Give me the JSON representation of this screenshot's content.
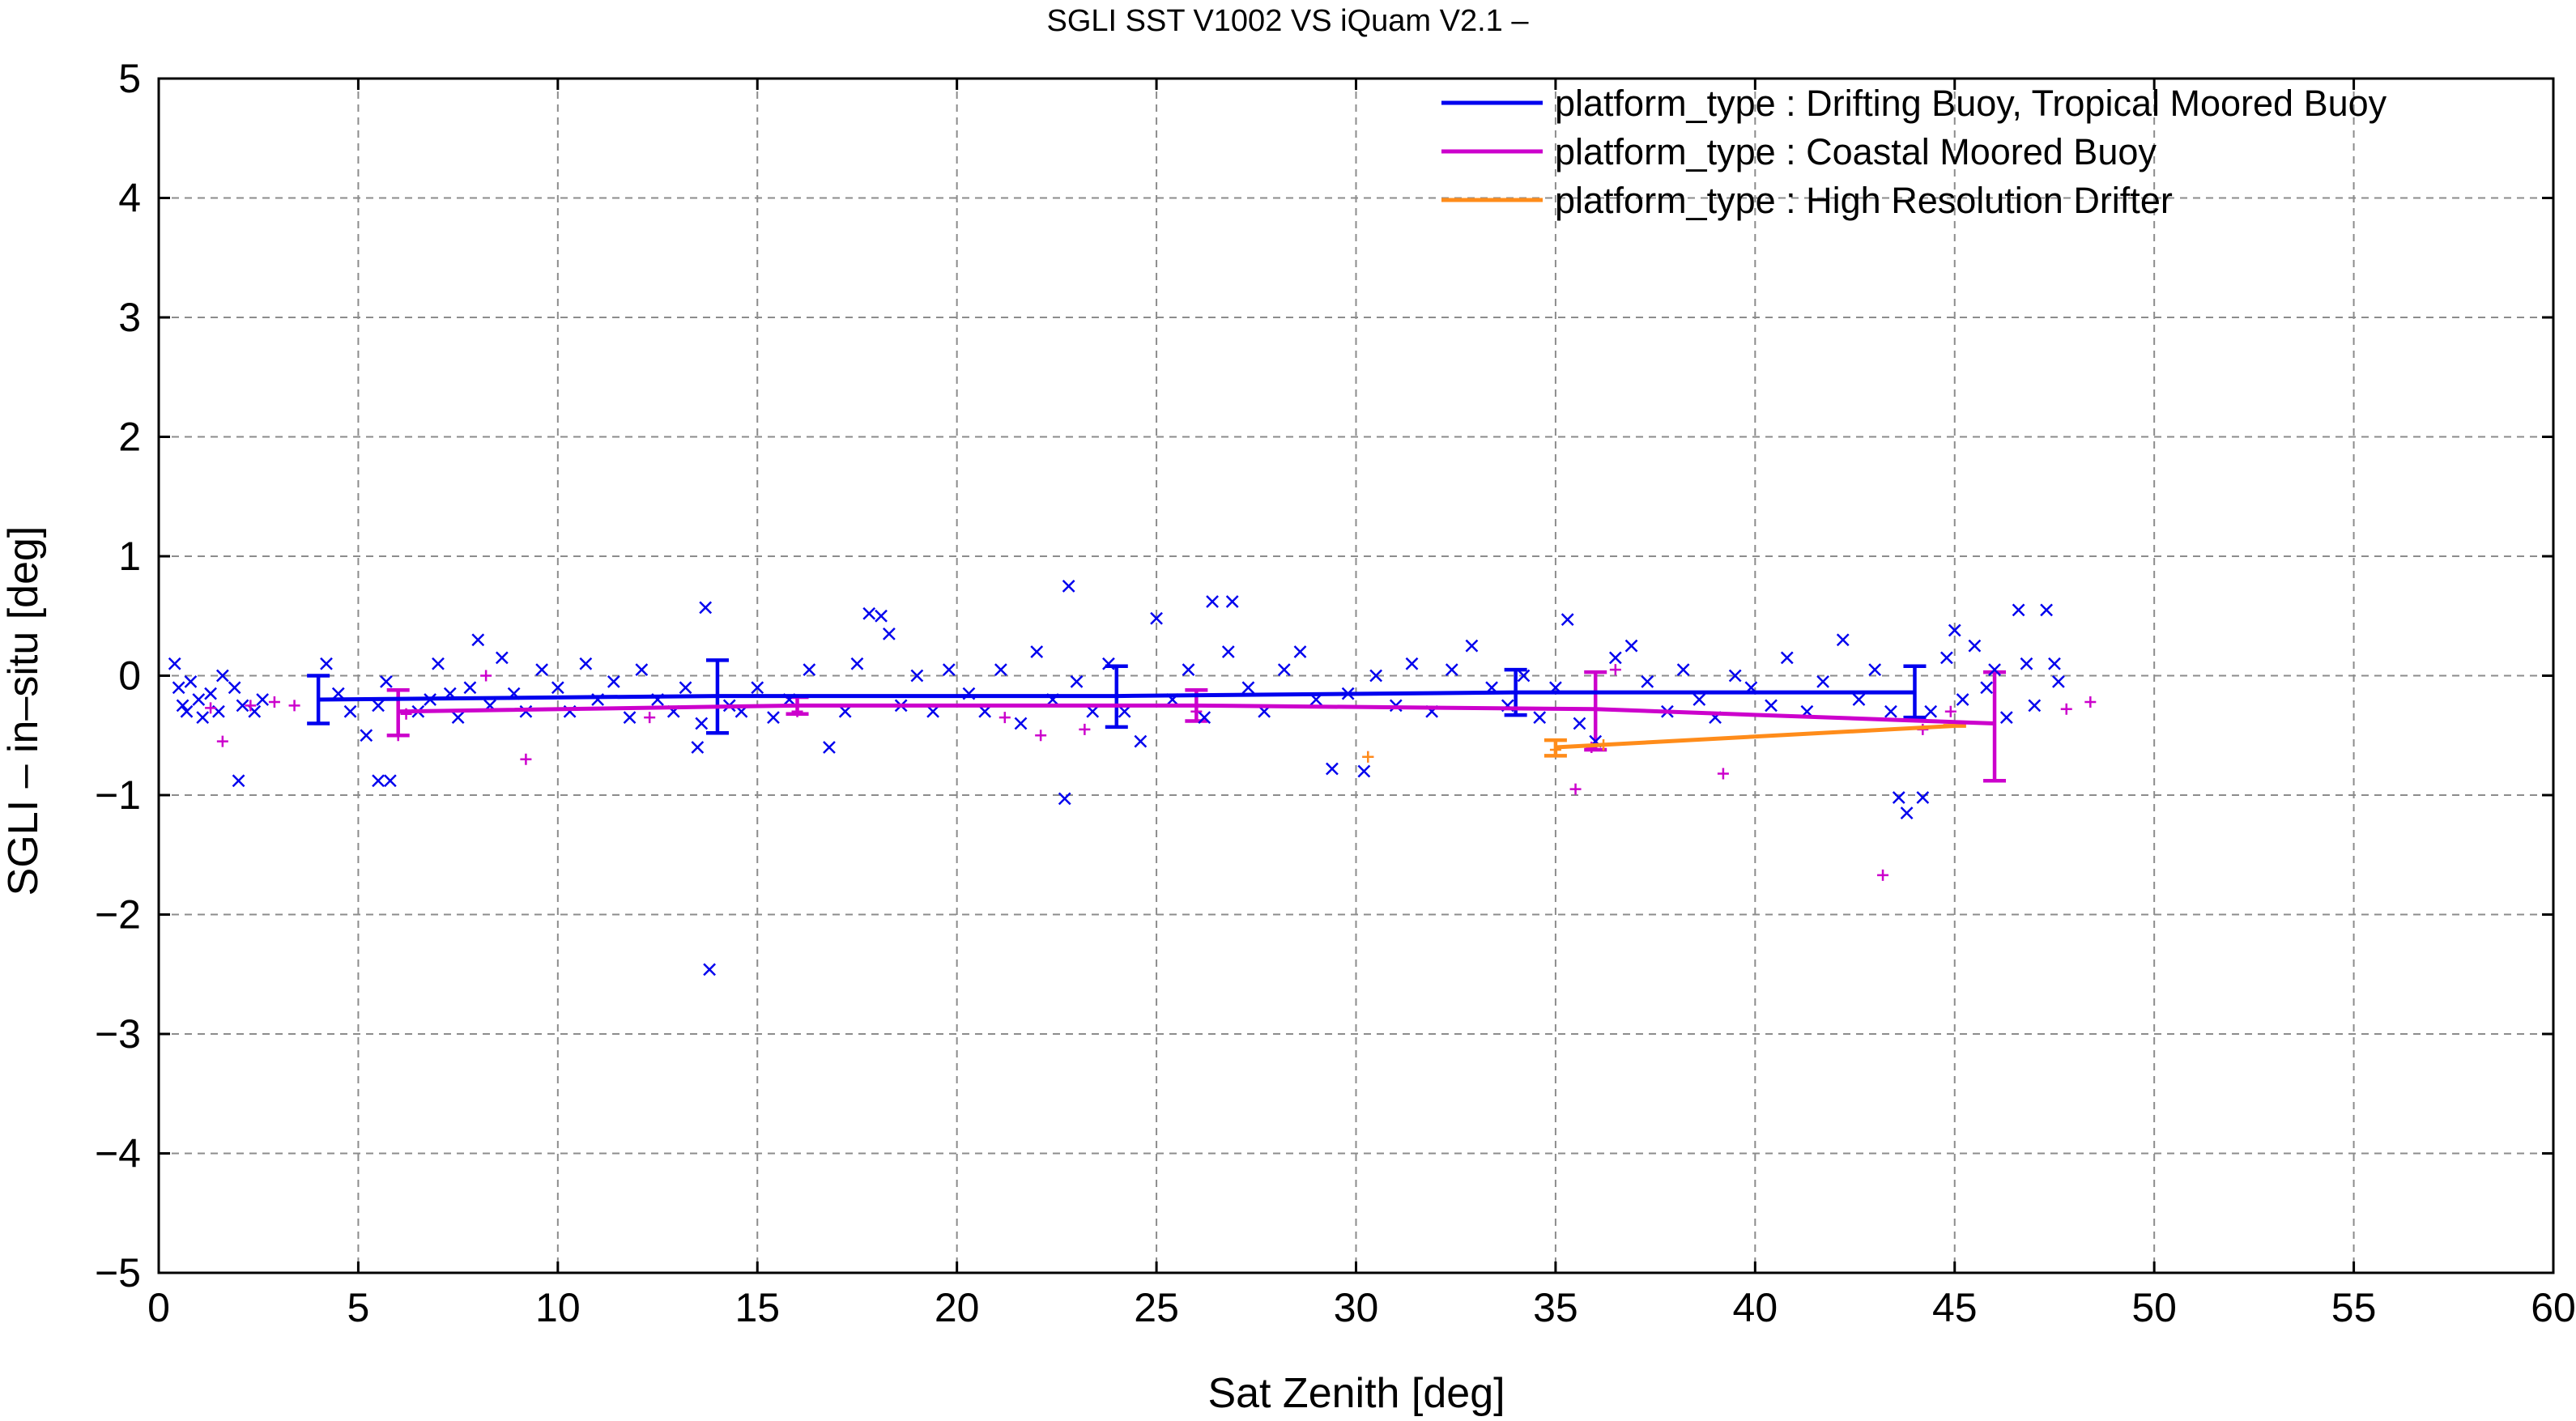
{
  "chart_data": {
    "type": "scatter",
    "title": "SGLI SST V1002 VS iQuam V2.1  –",
    "xlabel": "Sat Zenith [deg]",
    "ylabel": "SGLI – in–situ [deg]",
    "xlim": [
      0,
      60
    ],
    "ylim": [
      -5,
      5
    ],
    "xticks": [
      "0",
      "5",
      "10",
      "15",
      "20",
      "25",
      "30",
      "35",
      "40",
      "45",
      "50",
      "55",
      "60"
    ],
    "yticks": [
      "−5",
      "−4",
      "−3",
      "−2",
      "−1",
      "0",
      "1",
      "2",
      "3",
      "4",
      "5"
    ],
    "grid": true,
    "legend_position": "top-right",
    "series": [
      {
        "name": "platform_type : Drifting Buoy, Tropical Moored Buoy",
        "color": "#0000ee",
        "marker": "x",
        "mean_line": {
          "x": [
            4,
            14,
            24,
            34,
            44
          ],
          "y": [
            -0.2,
            -0.17,
            -0.17,
            -0.14,
            -0.14
          ],
          "err_low": [
            -0.4,
            -0.48,
            -0.43,
            -0.33,
            -0.35
          ],
          "err_high": [
            0.0,
            0.13,
            0.08,
            0.05,
            0.08
          ]
        },
        "points": [
          [
            0.4,
            0.1
          ],
          [
            0.5,
            -0.1
          ],
          [
            0.6,
            -0.25
          ],
          [
            0.7,
            -0.3
          ],
          [
            0.8,
            -0.05
          ],
          [
            1.0,
            -0.2
          ],
          [
            1.1,
            -0.35
          ],
          [
            1.3,
            -0.15
          ],
          [
            1.5,
            -0.3
          ],
          [
            1.6,
            0.0
          ],
          [
            1.9,
            -0.1
          ],
          [
            2.1,
            -0.25
          ],
          [
            2.4,
            -0.3
          ],
          [
            2.6,
            -0.2
          ],
          [
            2.0,
            -0.88
          ],
          [
            4.2,
            0.1
          ],
          [
            4.5,
            -0.15
          ],
          [
            4.8,
            -0.3
          ],
          [
            5.2,
            -0.5
          ],
          [
            5.5,
            -0.25
          ],
          [
            5.7,
            -0.05
          ],
          [
            5.5,
            -0.88
          ],
          [
            5.8,
            -0.88
          ],
          [
            6.5,
            -0.3
          ],
          [
            6.8,
            -0.2
          ],
          [
            7.0,
            0.1
          ],
          [
            7.3,
            -0.15
          ],
          [
            7.5,
            -0.35
          ],
          [
            7.8,
            -0.1
          ],
          [
            8.0,
            0.3
          ],
          [
            8.3,
            -0.25
          ],
          [
            8.6,
            0.15
          ],
          [
            8.9,
            -0.15
          ],
          [
            9.2,
            -0.3
          ],
          [
            9.6,
            0.05
          ],
          [
            10.0,
            -0.1
          ],
          [
            10.3,
            -0.3
          ],
          [
            10.7,
            0.1
          ],
          [
            11.0,
            -0.2
          ],
          [
            11.4,
            -0.05
          ],
          [
            11.8,
            -0.35
          ],
          [
            12.1,
            0.05
          ],
          [
            12.5,
            -0.2
          ],
          [
            12.9,
            -0.3
          ],
          [
            13.2,
            -0.1
          ],
          [
            13.5,
            -0.6
          ],
          [
            13.6,
            -0.4
          ],
          [
            13.7,
            0.57
          ],
          [
            13.8,
            -2.46
          ],
          [
            14.3,
            -0.25
          ],
          [
            14.6,
            -0.3
          ],
          [
            15.0,
            -0.1
          ],
          [
            15.4,
            -0.35
          ],
          [
            15.8,
            -0.2
          ],
          [
            16.3,
            0.05
          ],
          [
            16.8,
            -0.6
          ],
          [
            17.2,
            -0.3
          ],
          [
            17.5,
            0.1
          ],
          [
            17.8,
            0.52
          ],
          [
            18.1,
            0.5
          ],
          [
            18.3,
            0.35
          ],
          [
            18.6,
            -0.25
          ],
          [
            19.0,
            0.0
          ],
          [
            19.4,
            -0.3
          ],
          [
            19.8,
            0.05
          ],
          [
            20.3,
            -0.15
          ],
          [
            20.7,
            -0.3
          ],
          [
            21.1,
            0.05
          ],
          [
            21.6,
            -0.4
          ],
          [
            22.0,
            0.2
          ],
          [
            22.4,
            -0.2
          ],
          [
            22.7,
            -1.03
          ],
          [
            22.8,
            0.75
          ],
          [
            23.0,
            -0.05
          ],
          [
            23.4,
            -0.3
          ],
          [
            23.8,
            0.1
          ],
          [
            24.2,
            -0.3
          ],
          [
            24.6,
            -0.55
          ],
          [
            25.0,
            0.48
          ],
          [
            25.4,
            -0.2
          ],
          [
            25.8,
            0.05
          ],
          [
            26.2,
            -0.35
          ],
          [
            26.4,
            0.62
          ],
          [
            26.8,
            0.2
          ],
          [
            26.9,
            0.62
          ],
          [
            27.3,
            -0.1
          ],
          [
            27.7,
            -0.3
          ],
          [
            28.2,
            0.05
          ],
          [
            28.6,
            0.2
          ],
          [
            29.0,
            -0.2
          ],
          [
            29.4,
            -0.78
          ],
          [
            29.8,
            -0.15
          ],
          [
            30.2,
            -0.8
          ],
          [
            30.5,
            0.0
          ],
          [
            31.0,
            -0.25
          ],
          [
            31.4,
            0.1
          ],
          [
            31.9,
            -0.3
          ],
          [
            32.4,
            0.05
          ],
          [
            32.9,
            0.25
          ],
          [
            33.4,
            -0.1
          ],
          [
            33.8,
            -0.25
          ],
          [
            34.2,
            0.0
          ],
          [
            34.6,
            -0.35
          ],
          [
            35.0,
            -0.1
          ],
          [
            35.3,
            0.47
          ],
          [
            35.6,
            -0.4
          ],
          [
            36.0,
            -0.55
          ],
          [
            36.5,
            0.15
          ],
          [
            36.9,
            0.25
          ],
          [
            37.3,
            -0.05
          ],
          [
            37.8,
            -0.3
          ],
          [
            38.2,
            0.05
          ],
          [
            38.6,
            -0.2
          ],
          [
            39.0,
            -0.35
          ],
          [
            39.5,
            0.0
          ],
          [
            39.9,
            -0.1
          ],
          [
            40.4,
            -0.25
          ],
          [
            40.8,
            0.15
          ],
          [
            41.3,
            -0.3
          ],
          [
            41.7,
            -0.05
          ],
          [
            42.2,
            0.3
          ],
          [
            42.6,
            -0.2
          ],
          [
            43.0,
            0.05
          ],
          [
            43.4,
            -0.3
          ],
          [
            43.6,
            -1.02
          ],
          [
            43.8,
            -1.15
          ],
          [
            44.2,
            -1.02
          ],
          [
            44.4,
            -0.3
          ],
          [
            44.8,
            0.15
          ],
          [
            45.0,
            0.38
          ],
          [
            45.2,
            -0.2
          ],
          [
            45.5,
            0.25
          ],
          [
            45.8,
            -0.1
          ],
          [
            46.0,
            0.05
          ],
          [
            46.3,
            -0.35
          ],
          [
            46.6,
            0.55
          ],
          [
            46.8,
            0.1
          ],
          [
            47.0,
            -0.25
          ],
          [
            47.3,
            0.55
          ],
          [
            47.5,
            0.1
          ],
          [
            47.6,
            -0.05
          ]
        ]
      },
      {
        "name": "platform_type : Coastal Moored Buoy",
        "color": "#cc00cc",
        "marker": "+",
        "mean_line": {
          "x": [
            6,
            16,
            26,
            36,
            46
          ],
          "y": [
            -0.3,
            -0.25,
            -0.25,
            -0.28,
            -0.4
          ],
          "err_low": [
            -0.5,
            -0.32,
            -0.38,
            -0.62,
            -0.88
          ],
          "err_high": [
            -0.12,
            -0.18,
            -0.12,
            0.03,
            0.03
          ]
        },
        "points": [
          [
            1.3,
            -0.27
          ],
          [
            1.6,
            -0.55
          ],
          [
            2.3,
            -0.25
          ],
          [
            2.9,
            -0.22
          ],
          [
            3.4,
            -0.25
          ],
          [
            6.0,
            -0.5
          ],
          [
            6.2,
            -0.32
          ],
          [
            8.2,
            0.0
          ],
          [
            9.2,
            -0.7
          ],
          [
            12.3,
            -0.35
          ],
          [
            16.0,
            -0.3
          ],
          [
            21.2,
            -0.35
          ],
          [
            22.1,
            -0.5
          ],
          [
            23.2,
            -0.45
          ],
          [
            26.0,
            -0.3
          ],
          [
            30.3,
            -0.68
          ],
          [
            35.5,
            -0.95
          ],
          [
            35.9,
            -0.6
          ],
          [
            36.5,
            0.05
          ],
          [
            39.2,
            -0.82
          ],
          [
            43.2,
            -1.67
          ],
          [
            44.2,
            -0.45
          ],
          [
            44.9,
            -0.3
          ],
          [
            48.4,
            -0.22
          ],
          [
            47.8,
            -0.28
          ]
        ]
      },
      {
        "name": "platform_type : High Resolution Drifter",
        "color": "#ff8c1a",
        "marker": "+",
        "mean_line": {
          "x": [
            35,
            45
          ],
          "y": [
            -0.6,
            -0.42
          ],
          "err_low": [
            -0.67,
            -0.42
          ],
          "err_high": [
            -0.54,
            -0.42
          ]
        },
        "points": [
          [
            30.3,
            -0.68
          ],
          [
            35.0,
            -0.62
          ],
          [
            36.2,
            -0.58
          ]
        ]
      }
    ]
  }
}
